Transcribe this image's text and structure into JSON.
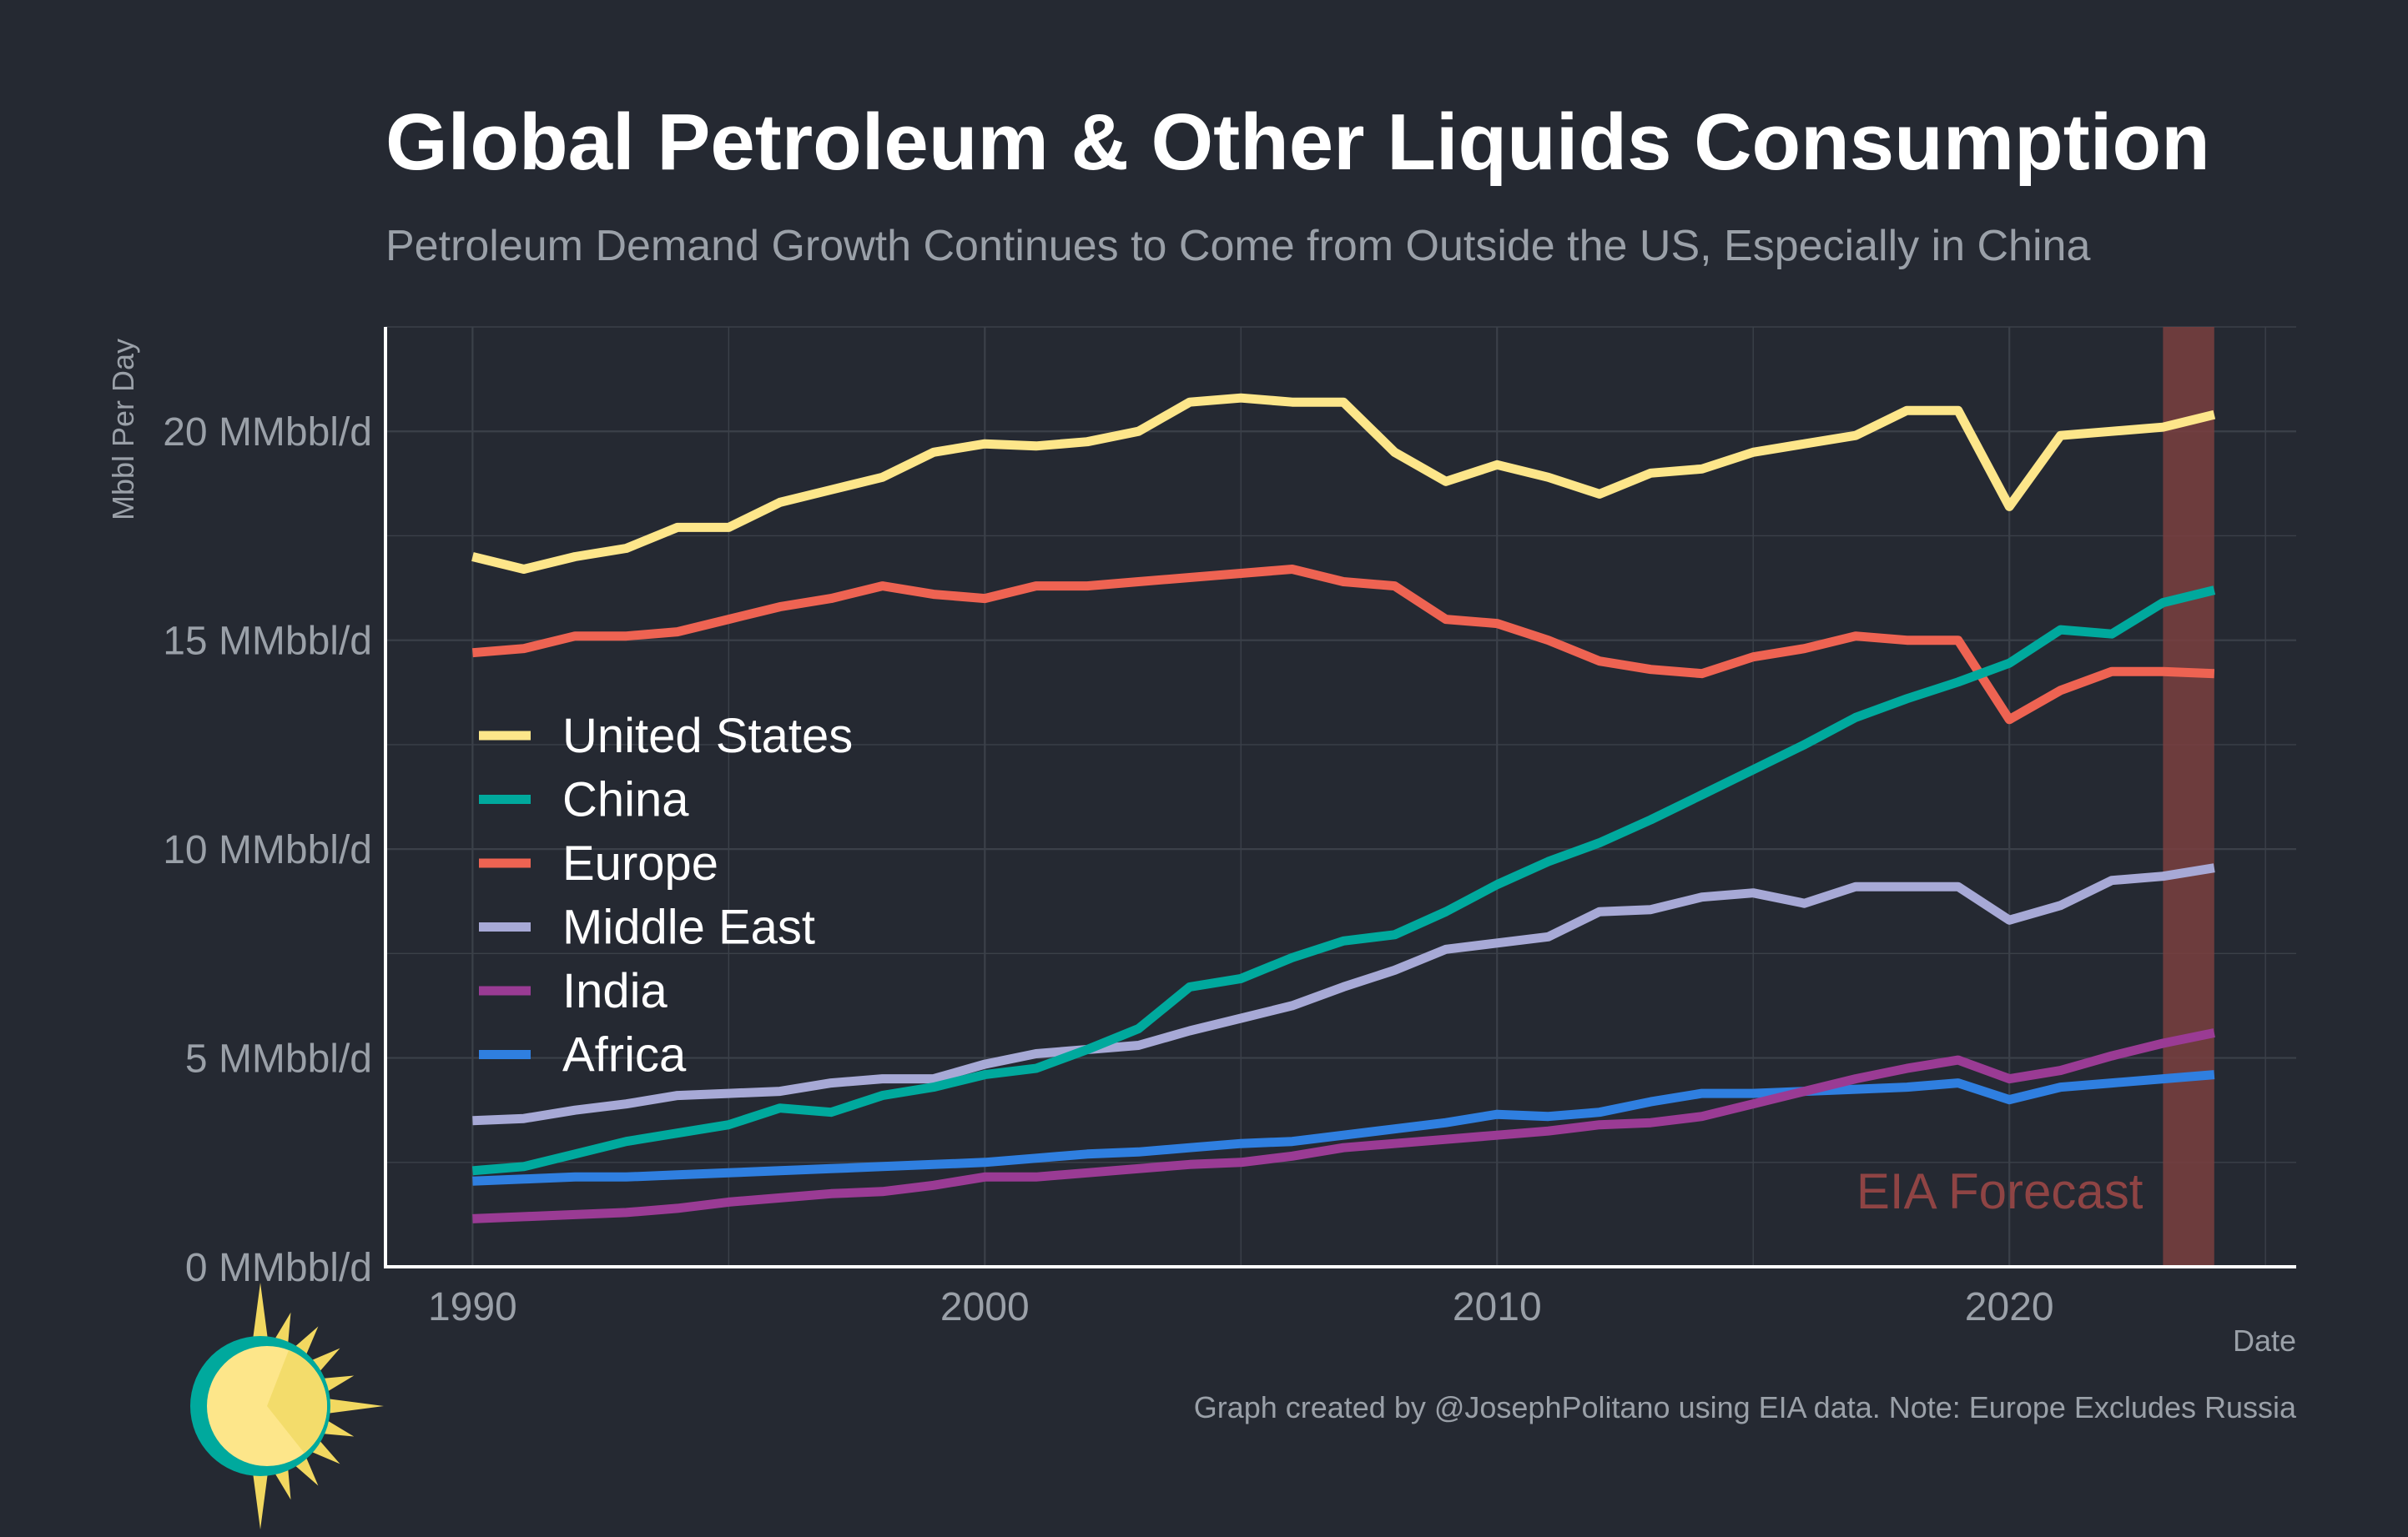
{
  "chart_data": {
    "type": "line",
    "title": "Global Petroleum & Other Liquids Consumption",
    "subtitle": "Petroleum Demand Growth Continues to Come from Outside the US, Especially in China",
    "xlabel": "Date",
    "ylabel": "Mbbl Per Day",
    "xlim": [
      1988.3,
      2025.6
    ],
    "ylim": [
      0,
      22.5
    ],
    "x_ticks": [
      1990,
      2000,
      2010,
      2020
    ],
    "x_tick_labels": [
      "1990",
      "2000",
      "2010",
      "2020"
    ],
    "y_ticks": [
      0,
      5,
      10,
      15,
      20
    ],
    "y_tick_labels": [
      "0 MMbbl/d",
      "5 MMbbl/d",
      "10 MMbbl/d",
      "15 MMbbl/d",
      "20 MMbbl/d"
    ],
    "grid": true,
    "legend_position": "left-middle",
    "x": [
      1990,
      1991,
      1992,
      1993,
      1994,
      1995,
      1996,
      1997,
      1998,
      1999,
      2000,
      2001,
      2002,
      2003,
      2004,
      2005,
      2006,
      2007,
      2008,
      2009,
      2010,
      2011,
      2012,
      2013,
      2014,
      2015,
      2016,
      2017,
      2018,
      2019,
      2020,
      2021,
      2022,
      2023,
      2024
    ],
    "series": [
      {
        "name": "United States",
        "color": "#fde68a",
        "values": [
          17.0,
          16.7,
          17.0,
          17.2,
          17.7,
          17.7,
          18.3,
          18.6,
          18.9,
          19.5,
          19.7,
          19.65,
          19.75,
          20.0,
          20.7,
          20.8,
          20.7,
          20.7,
          19.5,
          18.8,
          19.2,
          18.9,
          18.5,
          19.0,
          19.1,
          19.5,
          19.7,
          19.9,
          20.5,
          20.5,
          18.2,
          19.9,
          20.0,
          20.1,
          20.4
        ]
      },
      {
        "name": "China",
        "color": "#00a99d",
        "values": [
          2.3,
          2.4,
          2.7,
          3.0,
          3.2,
          3.4,
          3.8,
          3.7,
          4.1,
          4.3,
          4.6,
          4.75,
          5.2,
          5.7,
          6.7,
          6.9,
          7.4,
          7.8,
          7.95,
          8.5,
          9.15,
          9.7,
          10.15,
          10.7,
          11.3,
          11.9,
          12.5,
          13.15,
          13.6,
          14.0,
          14.45,
          15.25,
          15.15,
          15.9,
          16.2
        ]
      },
      {
        "name": "Europe",
        "color": "#ee6352",
        "values": [
          14.7,
          14.8,
          15.1,
          15.1,
          15.2,
          15.5,
          15.8,
          16.0,
          16.3,
          16.1,
          16.0,
          16.3,
          16.3,
          16.4,
          16.5,
          16.6,
          16.7,
          16.4,
          16.3,
          15.5,
          15.4,
          15.0,
          14.5,
          14.3,
          14.2,
          14.6,
          14.8,
          15.1,
          15.0,
          15.0,
          13.1,
          13.8,
          14.25,
          14.25,
          14.2
        ]
      },
      {
        "name": "Middle East",
        "color": "#a7a9d6",
        "values": [
          3.5,
          3.55,
          3.75,
          3.9,
          4.1,
          4.15,
          4.2,
          4.4,
          4.5,
          4.5,
          4.85,
          5.1,
          5.2,
          5.3,
          5.65,
          5.95,
          6.25,
          6.7,
          7.1,
          7.6,
          7.75,
          7.9,
          8.5,
          8.55,
          8.85,
          8.95,
          8.7,
          9.1,
          9.1,
          9.1,
          8.3,
          8.65,
          9.25,
          9.35,
          9.55
        ]
      },
      {
        "name": "India",
        "color": "#9a3b94",
        "values": [
          1.15,
          1.2,
          1.25,
          1.3,
          1.4,
          1.55,
          1.65,
          1.75,
          1.8,
          1.95,
          2.15,
          2.15,
          2.25,
          2.35,
          2.45,
          2.5,
          2.65,
          2.85,
          2.95,
          3.05,
          3.15,
          3.25,
          3.4,
          3.45,
          3.6,
          3.9,
          4.2,
          4.5,
          4.75,
          4.95,
          4.5,
          4.7,
          5.05,
          5.35,
          5.6
        ]
      },
      {
        "name": "Africa",
        "color": "#2f7fe0",
        "values": [
          2.05,
          2.1,
          2.15,
          2.15,
          2.2,
          2.25,
          2.3,
          2.35,
          2.4,
          2.45,
          2.5,
          2.6,
          2.7,
          2.75,
          2.85,
          2.95,
          3.0,
          3.15,
          3.3,
          3.45,
          3.65,
          3.6,
          3.7,
          3.95,
          4.15,
          4.15,
          4.2,
          4.25,
          4.3,
          4.4,
          4.0,
          4.3,
          4.4,
          4.5,
          4.6
        ]
      }
    ],
    "forecast_band": {
      "label": "EIA Forecast",
      "x_start": 2023.0,
      "x_end": 2024.0,
      "color": "#7a3f3f",
      "label_color": "#8f4444"
    },
    "caption": "Graph created by @JosephPolitano using EIA data. Note: Europe Excludes Russia"
  },
  "logo": {
    "name": "sun-logo",
    "disc_color": "#fde68a",
    "ring_color": "#00a99d",
    "ray_color": "#f2d860"
  }
}
